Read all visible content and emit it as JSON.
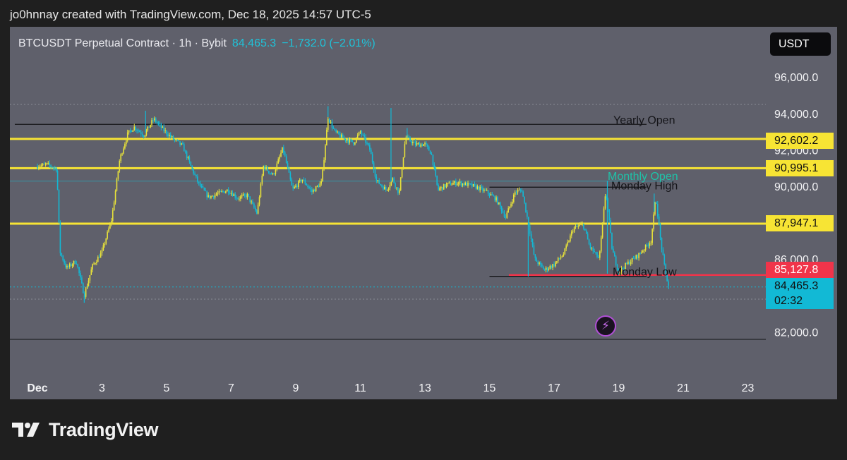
{
  "caption": "jo0hnnay created with TradingView.com, Dec 18, 2025 14:57 UTC-5",
  "legend": {
    "symbol": "BTCUSDT Perpetual Contract · 1h · Bybit",
    "last": "84,465.3",
    "change": "−1,732.0 (−2.01%)"
  },
  "currency": "USDT",
  "price_tags": {
    "yearly_open": "92,602.2",
    "monthly_open": "90,995.1",
    "level_3": "87,947.1",
    "monday_low": "85,127.8",
    "current": "84,465.3",
    "countdown": "02:32"
  },
  "brand": "TradingView",
  "colors": {
    "panel_bg": "#5f606b",
    "level_yellow": "#f7e434",
    "candle_up": "#e8e23a",
    "candle_down": "#12b9d5",
    "red_level": "#f0344a"
  },
  "chart_data": {
    "type": "candlestick",
    "title": "BTCUSDT Perpetual Contract · 1h · Bybit",
    "y_ticks": [
      {
        "value": 96000,
        "label": "96,000.0"
      },
      {
        "value": 94000,
        "label": "94,000.0"
      },
      {
        "value": 92000,
        "label": "92,000.0"
      },
      {
        "value": 90000,
        "label": "90,000.0"
      },
      {
        "value": 86000,
        "label": "86,000.0"
      },
      {
        "value": 82000,
        "label": "82,000.0"
      }
    ],
    "x_ticks": [
      {
        "day": 1,
        "label": "Dec"
      },
      {
        "day": 3,
        "label": "3"
      },
      {
        "day": 5,
        "label": "5"
      },
      {
        "day": 7,
        "label": "7"
      },
      {
        "day": 9,
        "label": "9"
      },
      {
        "day": 11,
        "label": "11"
      },
      {
        "day": 13,
        "label": "13"
      },
      {
        "day": 15,
        "label": "15"
      },
      {
        "day": 17,
        "label": "17"
      },
      {
        "day": 19,
        "label": "19"
      },
      {
        "day": 21,
        "label": "21"
      },
      {
        "day": 23,
        "label": "23"
      }
    ],
    "levels": [
      {
        "name": "Yearly Open",
        "price": 93400,
        "style": "black",
        "x_start": 0.3,
        "label": "Yearly Open"
      },
      {
        "name": "yellow-92602",
        "price": 92602.2,
        "style": "yellow"
      },
      {
        "name": "yellow-90995",
        "price": 90995.1,
        "style": "yellow"
      },
      {
        "name": "yellow-87947",
        "price": 87947.1,
        "style": "yellow"
      },
      {
        "name": "Monthly Open",
        "price": 90280,
        "style": "cyan-thin",
        "label": "Monthly Open"
      },
      {
        "name": "Monday High",
        "price": 89950,
        "style": "black",
        "x_start": 15.0,
        "label": "Monday High"
      },
      {
        "name": "Monday Low",
        "price": 85050,
        "style": "black",
        "x_start": 15.0,
        "label": "Monday Low"
      },
      {
        "name": "red-85127",
        "price": 85127.8,
        "style": "red",
        "x_start": 15.6
      }
    ],
    "keypoints": [
      [
        1.0,
        91100
      ],
      [
        1.3,
        91200
      ],
      [
        1.6,
        90950
      ],
      [
        1.7,
        86400
      ],
      [
        1.9,
        85500
      ],
      [
        2.2,
        85900
      ],
      [
        2.45,
        84000
      ],
      [
        2.7,
        85600
      ],
      [
        3.0,
        86400
      ],
      [
        3.3,
        88200
      ],
      [
        3.55,
        91500
      ],
      [
        3.8,
        92900
      ],
      [
        4.0,
        93250
      ],
      [
        4.3,
        92800
      ],
      [
        4.6,
        93700
      ],
      [
        4.9,
        93100
      ],
      [
        5.2,
        92600
      ],
      [
        5.5,
        92200
      ],
      [
        5.75,
        91100
      ],
      [
        6.0,
        90100
      ],
      [
        6.3,
        89400
      ],
      [
        6.6,
        89600
      ],
      [
        6.9,
        89800
      ],
      [
        7.2,
        89350
      ],
      [
        7.5,
        89500
      ],
      [
        7.8,
        88500
      ],
      [
        8.0,
        91100
      ],
      [
        8.3,
        90600
      ],
      [
        8.6,
        92100
      ],
      [
        8.9,
        89800
      ],
      [
        9.2,
        90400
      ],
      [
        9.5,
        89700
      ],
      [
        9.8,
        90200
      ],
      [
        10.0,
        93800
      ],
      [
        10.2,
        93000
      ],
      [
        10.5,
        92600
      ],
      [
        10.8,
        92400
      ],
      [
        11.0,
        93000
      ],
      [
        11.3,
        92000
      ],
      [
        11.5,
        90300
      ],
      [
        11.8,
        89800
      ],
      [
        12.0,
        90400
      ],
      [
        12.2,
        89600
      ],
      [
        12.4,
        92700
      ],
      [
        12.7,
        92300
      ],
      [
        13.0,
        92300
      ],
      [
        13.2,
        91800
      ],
      [
        13.4,
        89800
      ],
      [
        13.7,
        90100
      ],
      [
        14.0,
        90200
      ],
      [
        14.3,
        90100
      ],
      [
        14.6,
        89950
      ],
      [
        14.9,
        89700
      ],
      [
        15.2,
        89300
      ],
      [
        15.5,
        88300
      ],
      [
        15.8,
        89700
      ],
      [
        16.0,
        89800
      ],
      [
        16.2,
        88000
      ],
      [
        16.4,
        86000
      ],
      [
        16.7,
        85400
      ],
      [
        17.0,
        85700
      ],
      [
        17.3,
        86300
      ],
      [
        17.6,
        87700
      ],
      [
        17.9,
        87900
      ],
      [
        18.1,
        86700
      ],
      [
        18.4,
        86000
      ],
      [
        18.6,
        89800
      ],
      [
        18.8,
        86500
      ],
      [
        19.0,
        85300
      ],
      [
        19.3,
        85800
      ],
      [
        19.6,
        86200
      ],
      [
        19.8,
        86600
      ],
      [
        20.0,
        87000
      ],
      [
        20.15,
        89400
      ],
      [
        20.3,
        87000
      ],
      [
        20.45,
        85200
      ],
      [
        20.55,
        84500
      ]
    ],
    "spikes": [
      {
        "day": 2.45,
        "low": 83600
      },
      {
        "day": 4.35,
        "high": 94150
      },
      {
        "day": 10.0,
        "high": 94400
      },
      {
        "day": 11.95,
        "high": 94300
      },
      {
        "day": 12.45,
        "high": 93200
      },
      {
        "day": 18.65,
        "high": 90300
      },
      {
        "day": 18.65,
        "low": 85200
      },
      {
        "day": 20.1,
        "high": 89600
      },
      {
        "day": 16.2,
        "low": 85050
      },
      {
        "day": 20.55,
        "low": 84350
      }
    ]
  }
}
